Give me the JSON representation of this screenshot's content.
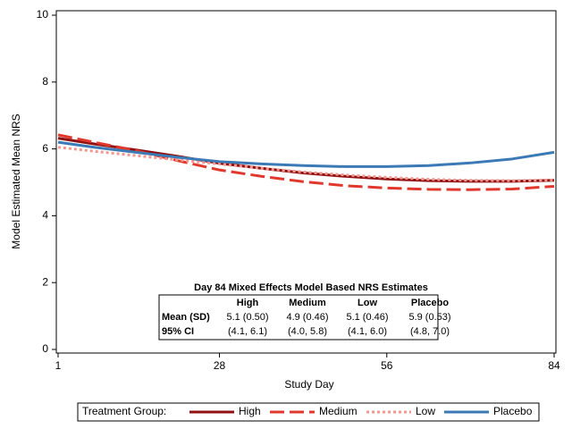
{
  "chart_data": {
    "type": "line",
    "xlabel": "Study Day",
    "ylabel": "Model Estimated Mean NRS",
    "x": [
      1,
      7,
      14,
      21,
      28,
      35,
      42,
      49,
      56,
      63,
      70,
      77,
      84
    ],
    "xlim": [
      1,
      84
    ],
    "xticks": [
      1,
      28,
      56,
      84
    ],
    "ylim": [
      0,
      10
    ],
    "yticks": [
      0,
      2,
      4,
      6,
      8,
      10
    ],
    "series": [
      {
        "name": "High",
        "color": "#8e1010",
        "style": "solid",
        "values": [
          6.32,
          6.15,
          5.97,
          5.78,
          5.57,
          5.42,
          5.28,
          5.18,
          5.1,
          5.05,
          5.03,
          5.03,
          5.06
        ]
      },
      {
        "name": "Medium",
        "color": "#e0382c",
        "style": "dashed",
        "values": [
          6.42,
          6.2,
          5.95,
          5.65,
          5.37,
          5.18,
          5.02,
          4.9,
          4.83,
          4.79,
          4.78,
          4.8,
          4.88
        ]
      },
      {
        "name": "Low",
        "color": "#f4978e",
        "style": "dotted",
        "values": [
          6.05,
          5.93,
          5.8,
          5.67,
          5.55,
          5.42,
          5.31,
          5.22,
          5.15,
          5.09,
          5.06,
          5.05,
          5.07
        ]
      },
      {
        "name": "Placebo",
        "color": "#3b7ab5",
        "style": "solid",
        "values": [
          6.2,
          6.05,
          5.9,
          5.75,
          5.62,
          5.55,
          5.5,
          5.47,
          5.47,
          5.5,
          5.58,
          5.7,
          5.9
        ]
      }
    ],
    "legend_title": "Treatment Group:",
    "legend_position": "bottom",
    "inset_table": {
      "title": "Day 84 Mixed Effects Model Based NRS Estimates",
      "columns": [
        "High",
        "Medium",
        "Low",
        "Placebo"
      ],
      "rows": [
        {
          "label": "Mean (SD)",
          "cells": [
            "5.1 (0.50)",
            "4.9 (0.46)",
            "5.1 (0.46)",
            "5.9 (0.53)"
          ]
        },
        {
          "label": "95% CI",
          "cells": [
            "(4.1, 6.1)",
            "(4.0, 5.8)",
            "(4.1, 6.0)",
            "(4.8, 7.0)"
          ]
        }
      ]
    }
  }
}
